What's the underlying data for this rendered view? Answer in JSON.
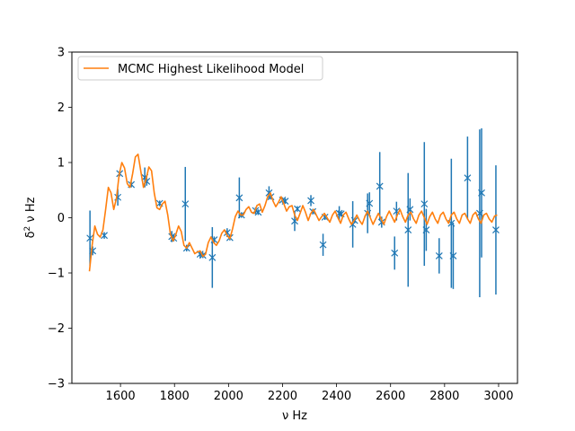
{
  "chart_data": {
    "type": "scatter",
    "title": "",
    "xlabel": "ν Hz",
    "ylabel_base": "δ",
    "ylabel_sup": "2",
    "ylabel_rest": "ν Hz",
    "xlim": [
      1420,
      3070
    ],
    "ylim": [
      -3,
      3
    ],
    "xticks": [
      1600,
      1800,
      2000,
      2200,
      2400,
      2600,
      2800,
      3000
    ],
    "yticks": [
      -3,
      -2,
      -1,
      0,
      1,
      2,
      3
    ],
    "legend": {
      "placement": "top-left",
      "entries": [
        "MCMC Highest Likelihood Model"
      ]
    },
    "colors": {
      "data": "#1f77b4",
      "model": "#ff7f0e"
    },
    "series": [
      {
        "kind": "errorbar-points",
        "points": [
          {
            "x": 1487,
            "y": -0.37,
            "err": 0.5
          },
          {
            "x": 1497,
            "y": -0.6,
            "err": 0.08
          },
          {
            "x": 1540,
            "y": -0.32,
            "err": 0.06
          },
          {
            "x": 1590,
            "y": 0.37,
            "err": 0.15
          },
          {
            "x": 1597,
            "y": 0.8,
            "err": 0.05
          },
          {
            "x": 1640,
            "y": 0.6,
            "err": 0.05
          },
          {
            "x": 1690,
            "y": 0.73,
            "err": 0.18
          },
          {
            "x": 1697,
            "y": 0.66,
            "err": 0.08
          },
          {
            "x": 1745,
            "y": 0.26,
            "err": 0.05
          },
          {
            "x": 1790,
            "y": -0.34,
            "err": 0.1
          },
          {
            "x": 1797,
            "y": -0.37,
            "err": 0.06
          },
          {
            "x": 1840,
            "y": 0.25,
            "err": 0.67
          },
          {
            "x": 1845,
            "y": -0.55,
            "err": 0.06
          },
          {
            "x": 1895,
            "y": -0.66,
            "err": 0.06
          },
          {
            "x": 1905,
            "y": -0.68,
            "err": 0.05
          },
          {
            "x": 1940,
            "y": -0.72,
            "err": 0.55
          },
          {
            "x": 1947,
            "y": -0.4,
            "err": 0.06
          },
          {
            "x": 1995,
            "y": -0.27,
            "err": 0.08
          },
          {
            "x": 2005,
            "y": -0.36,
            "err": 0.05
          },
          {
            "x": 2040,
            "y": 0.36,
            "err": 0.37
          },
          {
            "x": 2048,
            "y": 0.05,
            "err": 0.05
          },
          {
            "x": 2100,
            "y": 0.13,
            "err": 0.06
          },
          {
            "x": 2110,
            "y": 0.1,
            "err": 0.05
          },
          {
            "x": 2150,
            "y": 0.45,
            "err": 0.12
          },
          {
            "x": 2157,
            "y": 0.38,
            "err": 0.05
          },
          {
            "x": 2200,
            "y": 0.32,
            "err": 0.05
          },
          {
            "x": 2210,
            "y": 0.3,
            "err": 0.05
          },
          {
            "x": 2245,
            "y": -0.06,
            "err": 0.18
          },
          {
            "x": 2255,
            "y": 0.16,
            "err": 0.05
          },
          {
            "x": 2305,
            "y": 0.31,
            "err": 0.1
          },
          {
            "x": 2312,
            "y": 0.11,
            "err": 0.05
          },
          {
            "x": 2350,
            "y": -0.49,
            "err": 0.2
          },
          {
            "x": 2357,
            "y": 0.01,
            "err": 0.05
          },
          {
            "x": 2410,
            "y": 0.08,
            "err": 0.13
          },
          {
            "x": 2417,
            "y": 0.07,
            "err": 0.05
          },
          {
            "x": 2460,
            "y": -0.12,
            "err": 0.42
          },
          {
            "x": 2467,
            "y": -0.05,
            "err": 0.05
          },
          {
            "x": 2515,
            "y": 0.08,
            "err": 0.36
          },
          {
            "x": 2522,
            "y": 0.26,
            "err": 0.2
          },
          {
            "x": 2560,
            "y": 0.57,
            "err": 0.62
          },
          {
            "x": 2567,
            "y": -0.08,
            "err": 0.1
          },
          {
            "x": 2615,
            "y": -0.64,
            "err": 0.3
          },
          {
            "x": 2622,
            "y": 0.12,
            "err": 0.17
          },
          {
            "x": 2665,
            "y": -0.22,
            "err": 1.03
          },
          {
            "x": 2672,
            "y": 0.15,
            "err": 0.2
          },
          {
            "x": 2725,
            "y": 0.25,
            "err": 1.12
          },
          {
            "x": 2732,
            "y": -0.22,
            "err": 0.38
          },
          {
            "x": 2780,
            "y": -0.69,
            "err": 0.32
          },
          {
            "x": 2825,
            "y": -0.1,
            "err": 1.17
          },
          {
            "x": 2832,
            "y": -0.69,
            "err": 0.6
          },
          {
            "x": 2885,
            "y": 0.72,
            "err": 0.75
          },
          {
            "x": 2930,
            "y": 0.08,
            "err": 1.52
          },
          {
            "x": 2937,
            "y": 0.45,
            "err": 1.17
          },
          {
            "x": 2990,
            "y": -0.22,
            "err": 1.17
          }
        ]
      },
      {
        "name": "MCMC Highest Likelihood Model",
        "kind": "line",
        "x": [
          1485,
          1495,
          1505,
          1515,
          1525,
          1535,
          1545,
          1555,
          1565,
          1575,
          1585,
          1595,
          1605,
          1615,
          1625,
          1635,
          1645,
          1655,
          1665,
          1675,
          1685,
          1695,
          1705,
          1715,
          1725,
          1735,
          1745,
          1755,
          1765,
          1775,
          1785,
          1795,
          1805,
          1815,
          1825,
          1835,
          1845,
          1855,
          1865,
          1875,
          1885,
          1895,
          1905,
          1915,
          1925,
          1935,
          1945,
          1955,
          1965,
          1975,
          1985,
          1995,
          2005,
          2015,
          2025,
          2035,
          2045,
          2055,
          2065,
          2075,
          2085,
          2095,
          2105,
          2115,
          2125,
          2135,
          2145,
          2155,
          2165,
          2175,
          2185,
          2195,
          2205,
          2215,
          2225,
          2235,
          2245,
          2255,
          2265,
          2275,
          2285,
          2295,
          2305,
          2315,
          2325,
          2335,
          2345,
          2355,
          2365,
          2375,
          2385,
          2395,
          2405,
          2415,
          2425,
          2435,
          2445,
          2455,
          2465,
          2475,
          2485,
          2495,
          2505,
          2515,
          2525,
          2535,
          2545,
          2555,
          2565,
          2575,
          2585,
          2595,
          2605,
          2615,
          2625,
          2635,
          2645,
          2655,
          2665,
          2675,
          2685,
          2695,
          2705,
          2715,
          2725,
          2735,
          2745,
          2755,
          2765,
          2775,
          2785,
          2795,
          2805,
          2815,
          2825,
          2835,
          2845,
          2855,
          2865,
          2875,
          2885,
          2895,
          2905,
          2915,
          2925,
          2935,
          2945,
          2955,
          2965,
          2975,
          2985,
          2995
        ],
        "y": [
          -0.97,
          -0.5,
          -0.15,
          -0.3,
          -0.35,
          -0.22,
          0.15,
          0.55,
          0.45,
          0.15,
          0.35,
          0.78,
          1.0,
          0.9,
          0.62,
          0.55,
          0.8,
          1.1,
          1.15,
          0.85,
          0.55,
          0.7,
          0.92,
          0.85,
          0.45,
          0.18,
          0.15,
          0.25,
          0.3,
          0.05,
          -0.3,
          -0.42,
          -0.3,
          -0.15,
          -0.25,
          -0.5,
          -0.55,
          -0.45,
          -0.55,
          -0.65,
          -0.62,
          -0.6,
          -0.7,
          -0.66,
          -0.45,
          -0.35,
          -0.45,
          -0.5,
          -0.42,
          -0.28,
          -0.22,
          -0.32,
          -0.38,
          -0.2,
          0.02,
          0.12,
          0.05,
          0.05,
          0.15,
          0.2,
          0.1,
          0.08,
          0.22,
          0.25,
          0.1,
          0.22,
          0.38,
          0.45,
          0.3,
          0.2,
          0.28,
          0.38,
          0.25,
          0.12,
          0.2,
          0.22,
          0.05,
          -0.05,
          0.08,
          0.22,
          0.1,
          -0.05,
          0.08,
          0.15,
          0.05,
          -0.05,
          0.02,
          0.08,
          0.0,
          -0.08,
          0.05,
          0.12,
          0.0,
          -0.1,
          0.05,
          0.1,
          -0.02,
          -0.12,
          -0.05,
          0.05,
          -0.05,
          -0.12,
          0.02,
          0.12,
          0.0,
          -0.12,
          -0.02,
          0.08,
          -0.02,
          -0.12,
          0.02,
          0.12,
          0.02,
          -0.08,
          0.05,
          0.15,
          0.02,
          -0.08,
          0.05,
          0.1,
          -0.02,
          -0.1,
          0.05,
          0.12,
          0.0,
          -0.12,
          0.02,
          0.1,
          -0.02,
          -0.1,
          0.05,
          0.1,
          -0.02,
          -0.1,
          0.05,
          0.1,
          -0.02,
          -0.1,
          0.05,
          0.08,
          -0.02,
          -0.1,
          0.05,
          0.1,
          -0.02,
          -0.1,
          0.05,
          0.08,
          -0.02,
          -0.08,
          0.03,
          0.05
        ]
      }
    ]
  }
}
